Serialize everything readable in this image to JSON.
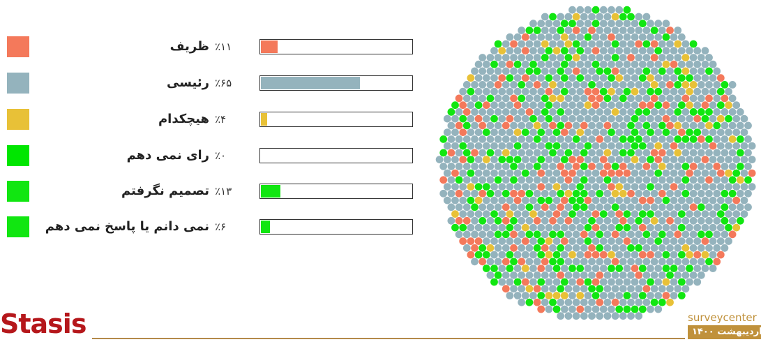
{
  "chart_data": {
    "type": "bar",
    "categories": [
      "ظریف",
      "رئیسی",
      "هیچکدام",
      "رای نمی دهم",
      "تصمیم نگرفتم",
      "نمی دانم یا پاسخ نمی دهم"
    ],
    "values": [
      11,
      65,
      4,
      0,
      13,
      6
    ],
    "value_labels": [
      "٪۱۱",
      "٪۶۵",
      "٪۴",
      "٪۰",
      "٪۱۳",
      "٪۶"
    ],
    "colors": [
      "#f4795b",
      "#94b3bd",
      "#e8c137",
      "#00e600",
      "#11e611",
      "#11e611"
    ],
    "xlim": [
      0,
      100
    ]
  },
  "footer": {
    "logo": "Stasis",
    "brand": "surveycenter",
    "date": "اردیبهشت ۱۴۰۰"
  }
}
